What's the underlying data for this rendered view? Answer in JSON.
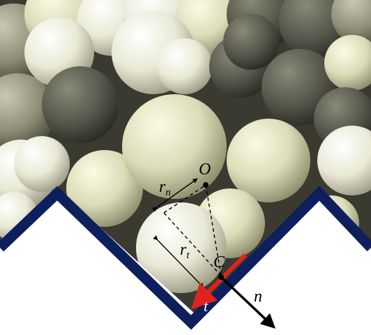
{
  "labels": {
    "center": "O",
    "contact": "C",
    "r_n_main": "r",
    "r_n_sub": "n",
    "r_t_main": "r",
    "r_t_sub": "t",
    "tangent": "t",
    "normal": "n"
  },
  "colors": {
    "wall": "#0d1f5c",
    "tangent_arrow": "#e0231f",
    "normal_arrow": "#000000",
    "background": "#ffffff"
  }
}
